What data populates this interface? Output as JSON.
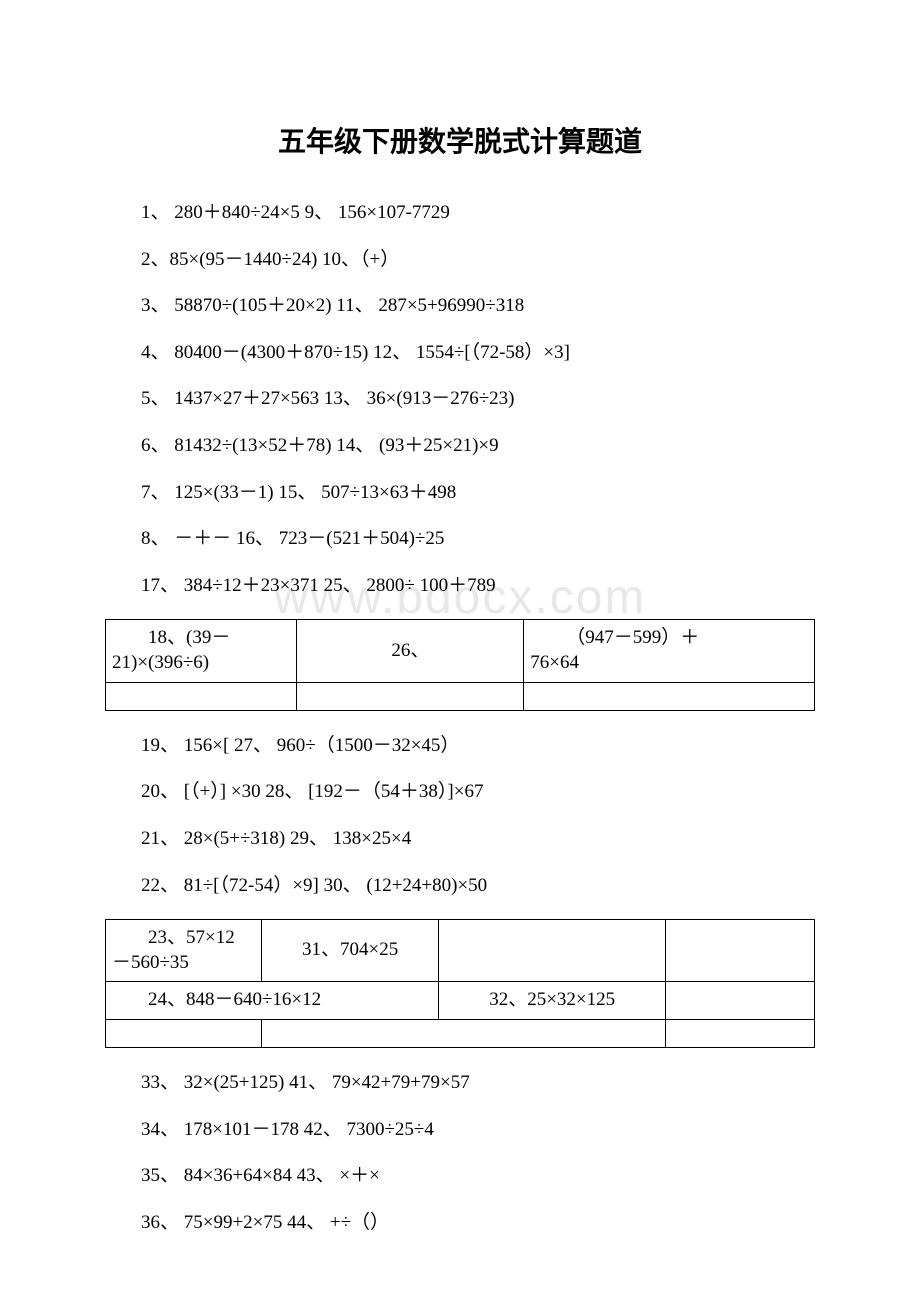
{
  "title": "五年级下册数学脱式计算题道",
  "watermark": "www.bdocx.com",
  "lines_block1": [
    "1、 280＋840÷24×5 9、 156×107-7729",
    "2、85×(95－1440÷24)  10、（+）",
    "3、 58870÷(105＋20×2) 11、 287×5+96990÷318",
    "4、 80400－(4300＋870÷15) 12、 1554÷[（72-58）×3]",
    "5、 1437×27＋27×563 13、 36×(913－276÷23)",
    "6、 81432÷(13×52＋78) 14、 (93＋25×21)×9",
    "7、 125×(33－1) 15、 507÷13×63＋498",
    "8、 －＋－ 16、 723－(521＋504)÷25",
    "17、 384÷12＋23×371 25、 2800÷ 100＋789"
  ],
  "table1": {
    "r1c1_line1": "18、(39－",
    "r1c1_line2": "21)×(396÷6)",
    "r1c2": "26、",
    "r1c3_line1": "（947－599）＋",
    "r1c3_line2": "76×64"
  },
  "lines_block2": [
    "19、 156×[ 27、 960÷（1500－32×45）",
    "20、 [（+）] ×30 28、 [192－（54＋38）]×67",
    "21、 28×(5+÷318) 29、 138×25×4",
    "22、 81÷[（72-54）×9] 30、 (12+24+80)×50"
  ],
  "table2": {
    "r1c1_line1": "23、57×12",
    "r1c1_line2": "－560÷35",
    "r1c2": "31、704×25",
    "r2c1": "24、848－640÷16×12",
    "r2c2": "32、25×32×125"
  },
  "lines_block3": [
    "33、 32×(25+125) 41、 79×42+79+79×57",
    "34、 178×101－178 42、 7300÷25÷4",
    "35、 84×36+64×84 43、 ×＋×",
    "36、 75×99+2×75 44、 +÷（）"
  ],
  "colors": {
    "background": "#ffffff",
    "text": "#000000",
    "border": "#000000",
    "watermark": "#e8e8e8"
  },
  "typography": {
    "title_size": 28,
    "body_size": 19,
    "watermark_size": 48
  }
}
